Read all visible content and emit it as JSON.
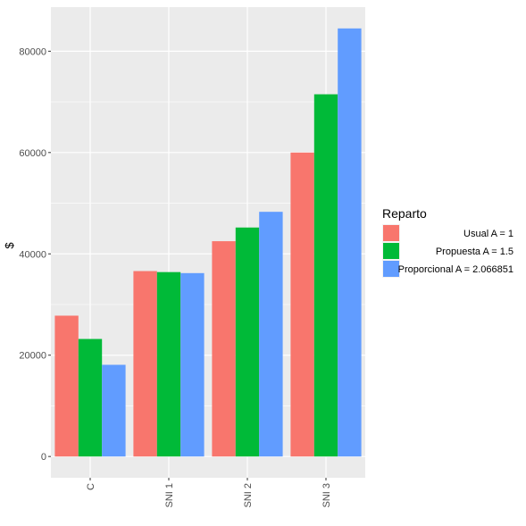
{
  "chart_data": {
    "type": "bar",
    "categories": [
      "C",
      "SNI 1",
      "SNI 2",
      "SNI 3"
    ],
    "series": [
      {
        "name": "Usual A = 1",
        "color": "#f8766d",
        "values": [
          27800,
          36600,
          42500,
          60000
        ]
      },
      {
        "name": "Propuesta A = 1.5",
        "color": "#00ba38",
        "values": [
          23200,
          36400,
          45200,
          71500
        ]
      },
      {
        "name": "Proporcional A = 2.066851",
        "color": "#619cff",
        "values": [
          18100,
          36200,
          48300,
          84500
        ]
      }
    ],
    "ylabel": "$",
    "xlabel": "",
    "ylim": [
      -4200,
      88700
    ],
    "yticks": [
      0,
      20000,
      40000,
      60000,
      80000
    ],
    "ytick_labels": [
      "0",
      "20000",
      "40000",
      "60000",
      "80000"
    ],
    "legend": {
      "title": "Reparto",
      "position": "right"
    },
    "grid": true,
    "panel_background": "#ebebeb"
  }
}
